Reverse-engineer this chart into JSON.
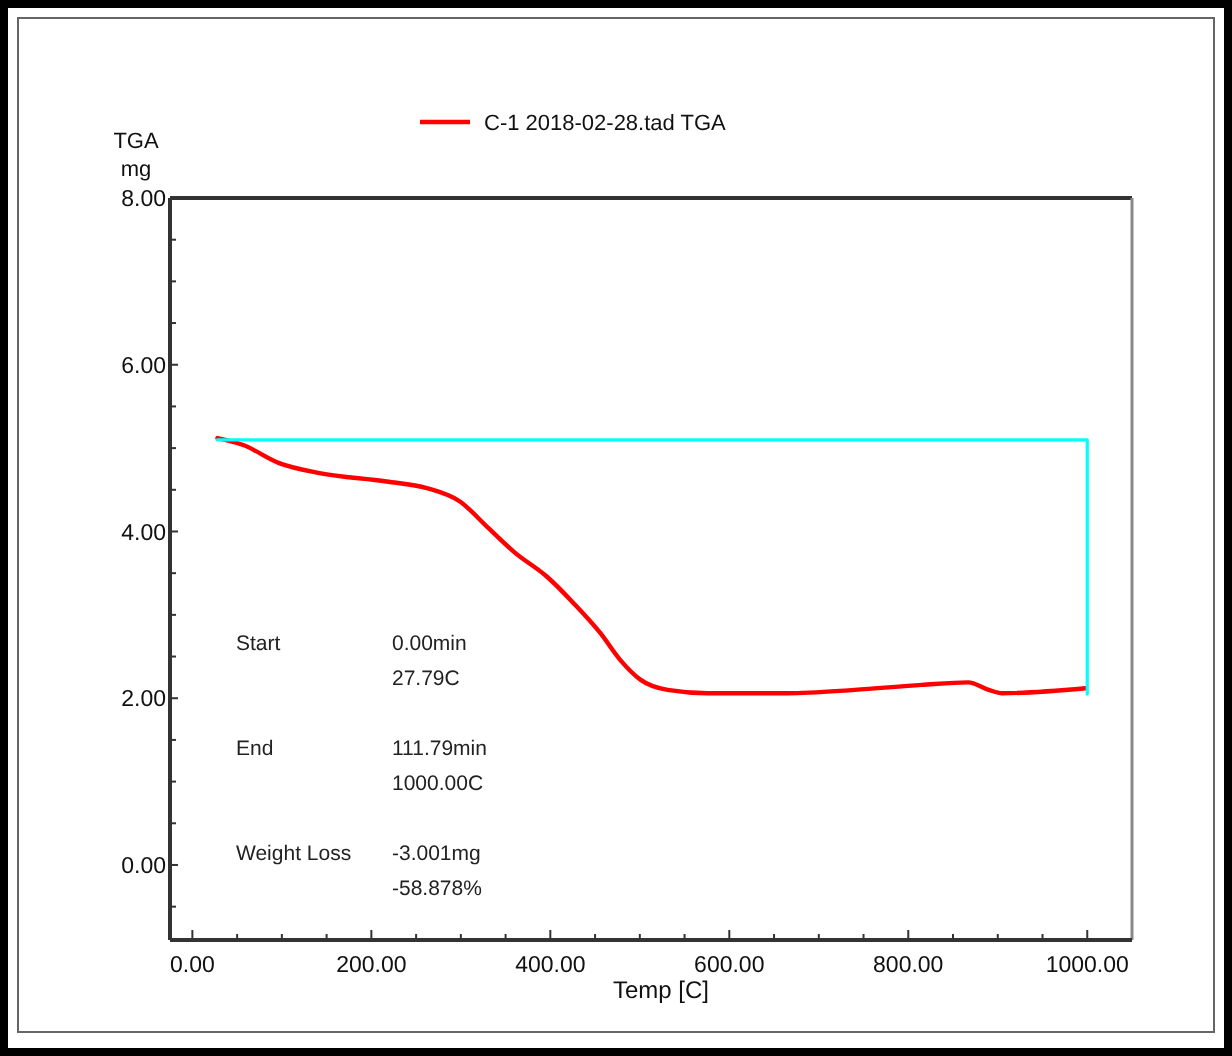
{
  "chart_data": {
    "type": "line",
    "xlabel": "Temp  [C]",
    "ylabel": "TGA\nmg",
    "xlim": [
      -25,
      1050
    ],
    "ylim": [
      -0.9,
      8.0
    ],
    "xticks": [
      {
        "value": 0,
        "label": "0.00"
      },
      {
        "value": 50,
        "label": null
      },
      {
        "value": 100,
        "label": null
      },
      {
        "value": 150,
        "label": null
      },
      {
        "value": 200,
        "label": "200.00"
      },
      {
        "value": 250,
        "label": null
      },
      {
        "value": 300,
        "label": null
      },
      {
        "value": 350,
        "label": null
      },
      {
        "value": 400,
        "label": "400.00"
      },
      {
        "value": 450,
        "label": null
      },
      {
        "value": 500,
        "label": null
      },
      {
        "value": 550,
        "label": null
      },
      {
        "value": 600,
        "label": "600.00"
      },
      {
        "value": 650,
        "label": null
      },
      {
        "value": 700,
        "label": null
      },
      {
        "value": 750,
        "label": null
      },
      {
        "value": 800,
        "label": "800.00"
      },
      {
        "value": 850,
        "label": null
      },
      {
        "value": 900,
        "label": null
      },
      {
        "value": 950,
        "label": null
      },
      {
        "value": 1000,
        "label": "1000.00"
      }
    ],
    "yticks": [
      {
        "value": -0.5,
        "label": null
      },
      {
        "value": 0,
        "label": "0.00"
      },
      {
        "value": 0.5,
        "label": null
      },
      {
        "value": 1,
        "label": null
      },
      {
        "value": 1.5,
        "label": null
      },
      {
        "value": 2,
        "label": "2.00"
      },
      {
        "value": 2.5,
        "label": null
      },
      {
        "value": 3,
        "label": null
      },
      {
        "value": 3.5,
        "label": null
      },
      {
        "value": 4,
        "label": "4.00"
      },
      {
        "value": 4.5,
        "label": null
      },
      {
        "value": 5,
        "label": null
      },
      {
        "value": 5.5,
        "label": null
      },
      {
        "value": 6,
        "label": "6.00"
      },
      {
        "value": 6.5,
        "label": null
      },
      {
        "value": 7,
        "label": null
      },
      {
        "value": 7.5,
        "label": null
      },
      {
        "value": 8,
        "label": "8.00"
      }
    ],
    "legend": "top",
    "grid": false,
    "line_style": "solid",
    "series": [
      {
        "name": "C-1 2018-02-28.tad TGA",
        "color": "#ff0000",
        "x": [
          28,
          56,
          97,
          142,
          217,
          262,
          299,
          330,
          360,
          396,
          426,
          456,
          478,
          501,
          531,
          576,
          665,
          740,
          815,
          867,
          890,
          905,
          998
        ],
        "values": [
          5.12,
          5.04,
          4.82,
          4.7,
          4.6,
          4.52,
          4.36,
          4.05,
          3.75,
          3.46,
          3.14,
          2.78,
          2.46,
          2.22,
          2.1,
          2.06,
          2.06,
          2.1,
          2.16,
          2.19,
          2.1,
          2.06,
          2.12
        ]
      },
      {
        "color": "#00ffff",
        "x": [
          27.79,
          1000,
          1000
        ],
        "values": [
          5.1,
          5.1,
          2.05
        ]
      }
    ],
    "annotations": [
      "Start",
      "0.00min",
      "27.79C",
      "End",
      "111.79min",
      "1000.00C",
      "Weight Loss",
      "-3.001mg",
      "-58.878%"
    ]
  }
}
